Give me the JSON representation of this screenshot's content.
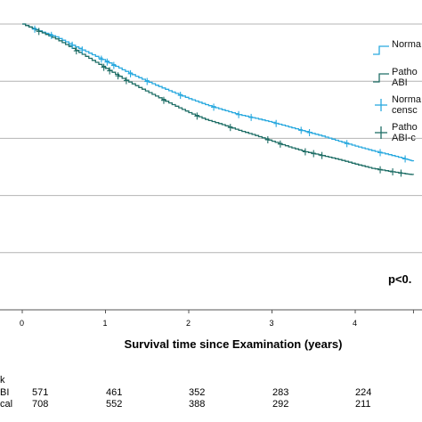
{
  "chart_data": {
    "type": "line",
    "title": "",
    "xlabel": "Survival time since Examination (years)",
    "ylabel": "",
    "xlim": [
      0,
      4.7
    ],
    "x_ticks": [
      "0",
      "1",
      "2",
      "3",
      "4"
    ],
    "grid": "horizontal",
    "legend_position": "right",
    "legend": [
      {
        "label": "Norma",
        "kind": "step-line",
        "color": "#29a9df"
      },
      {
        "label": "Patho\nABI",
        "kind": "step-line",
        "color": "#1f6e66"
      },
      {
        "label": "Norma\ncensc",
        "kind": "censor-mark",
        "color": "#29a9df"
      },
      {
        "label": "Patho\nABI-c",
        "kind": "censor-mark",
        "color": "#1f6e66"
      }
    ],
    "series": [
      {
        "color": "#29a9df",
        "x": [
          0,
          0.2,
          0.4,
          0.6,
          0.8,
          1.0,
          1.2,
          1.4,
          1.6,
          1.8,
          2.0,
          2.2,
          2.4,
          2.6,
          2.8,
          3.0,
          3.2,
          3.4,
          3.6,
          3.8,
          4.0,
          4.2,
          4.4,
          4.6,
          4.7
        ],
        "y": [
          1.0,
          0.976,
          0.955,
          0.926,
          0.898,
          0.87,
          0.84,
          0.812,
          0.786,
          0.762,
          0.739,
          0.718,
          0.7,
          0.683,
          0.67,
          0.656,
          0.64,
          0.624,
          0.608,
          0.59,
          0.573,
          0.557,
          0.543,
          0.528,
          0.52
        ],
        "censored_x": [
          0.15,
          0.35,
          0.6,
          0.72,
          0.95,
          1.02,
          1.1,
          1.3,
          1.5,
          1.9,
          2.3,
          2.6,
          2.75,
          3.05,
          3.35,
          3.45,
          3.9,
          4.3,
          4.6
        ]
      },
      {
        "color": "#1f6e66",
        "x": [
          0,
          0.2,
          0.4,
          0.6,
          0.8,
          1.0,
          1.2,
          1.4,
          1.6,
          1.8,
          2.0,
          2.2,
          2.4,
          2.6,
          2.8,
          3.0,
          3.2,
          3.4,
          3.6,
          3.8,
          4.0,
          4.2,
          4.4,
          4.6,
          4.7
        ],
        "y": [
          1.0,
          0.974,
          0.948,
          0.915,
          0.88,
          0.845,
          0.81,
          0.778,
          0.748,
          0.718,
          0.69,
          0.666,
          0.648,
          0.628,
          0.61,
          0.59,
          0.57,
          0.553,
          0.54,
          0.526,
          0.51,
          0.495,
          0.485,
          0.476,
          0.473
        ],
        "censored_x": [
          0.2,
          0.65,
          0.98,
          1.05,
          1.15,
          1.25,
          1.7,
          2.1,
          2.5,
          2.95,
          3.1,
          3.4,
          3.5,
          3.6,
          4.3,
          4.45,
          4.55
        ]
      }
    ],
    "annotations": [
      {
        "text": "p<0."
      }
    ],
    "risk_table": {
      "header": "k",
      "rows": [
        {
          "label": "BI",
          "values": [
            "571",
            "461",
            "352",
            "283",
            "224"
          ]
        },
        {
          "label": "cal",
          "values": [
            "708",
            "552",
            "388",
            "292",
            "211"
          ]
        }
      ]
    }
  }
}
